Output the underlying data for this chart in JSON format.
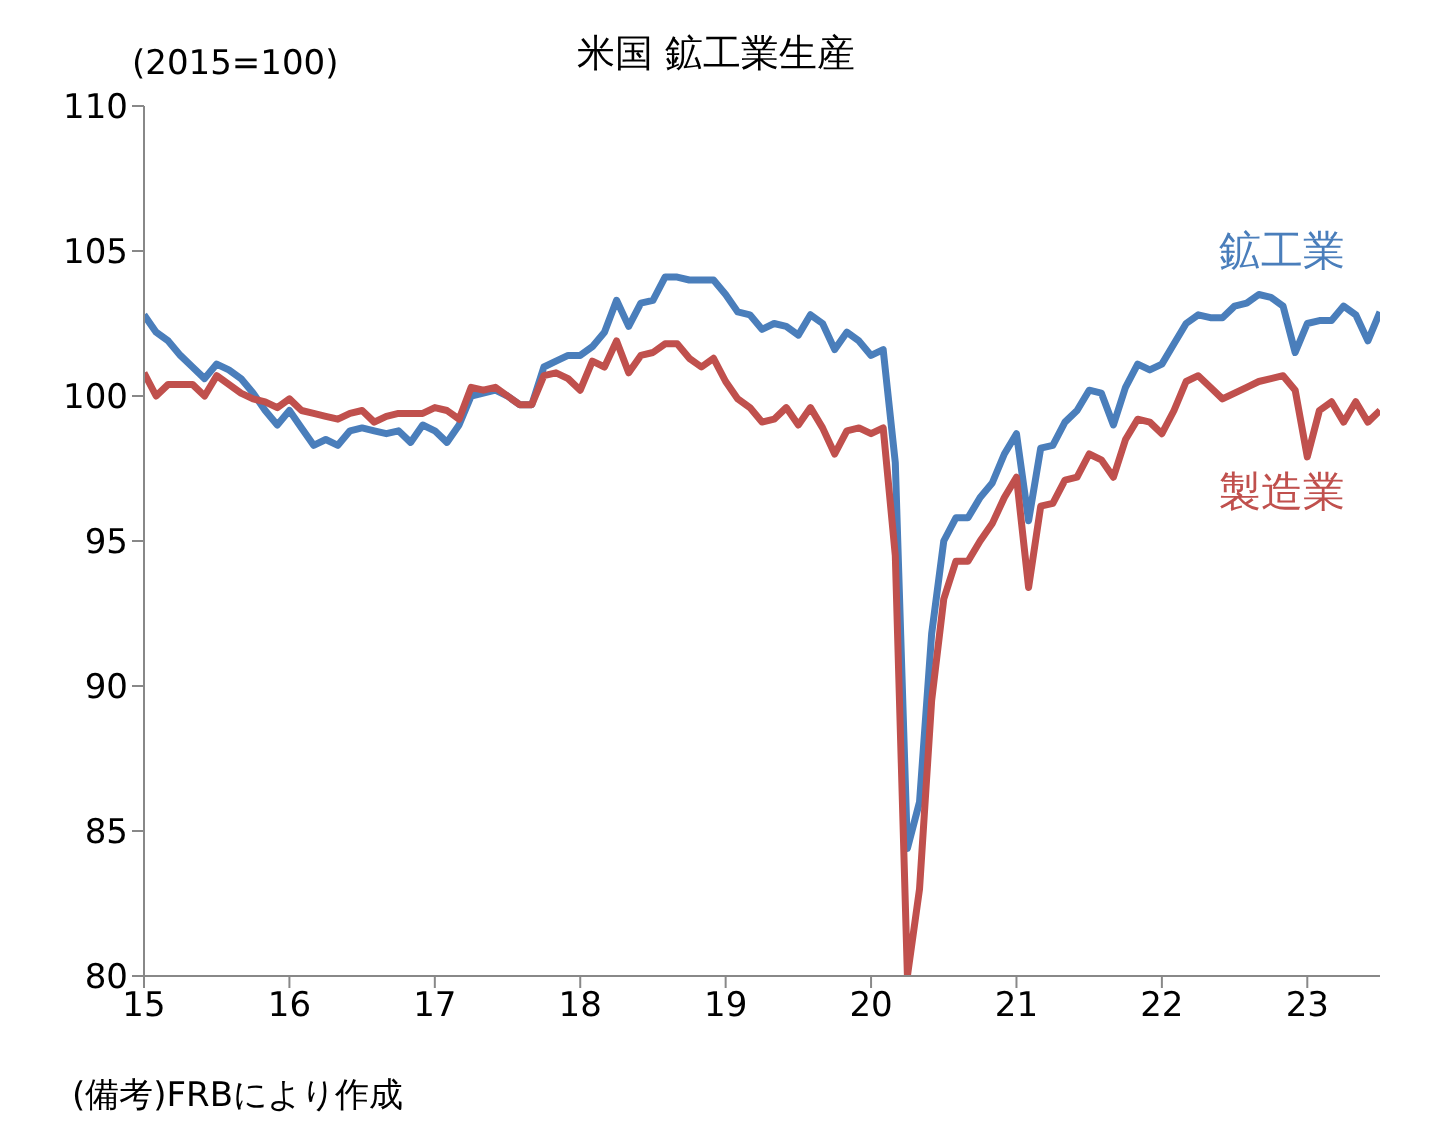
{
  "chart_data": {
    "type": "line",
    "title": "米国 鉱工業生産",
    "ylabel": "(2015=100)",
    "annotations": [
      "(備考)FRBにより作成"
    ],
    "x": [
      "2015-01",
      "2015-02",
      "2015-03",
      "2015-04",
      "2015-05",
      "2015-06",
      "2015-07",
      "2015-08",
      "2015-09",
      "2015-10",
      "2015-11",
      "2015-12",
      "2016-01",
      "2016-02",
      "2016-03",
      "2016-04",
      "2016-05",
      "2016-06",
      "2016-07",
      "2016-08",
      "2016-09",
      "2016-10",
      "2016-11",
      "2016-12",
      "2017-01",
      "2017-02",
      "2017-03",
      "2017-04",
      "2017-05",
      "2017-06",
      "2017-07",
      "2017-08",
      "2017-09",
      "2017-10",
      "2017-11",
      "2017-12",
      "2018-01",
      "2018-02",
      "2018-03",
      "2018-04",
      "2018-05",
      "2018-06",
      "2018-07",
      "2018-08",
      "2018-09",
      "2018-10",
      "2018-11",
      "2018-12",
      "2019-01",
      "2019-02",
      "2019-03",
      "2019-04",
      "2019-05",
      "2019-06",
      "2019-07",
      "2019-08",
      "2019-09",
      "2019-10",
      "2019-11",
      "2019-12",
      "2020-01",
      "2020-02",
      "2020-03",
      "2020-04",
      "2020-05",
      "2020-06",
      "2020-07",
      "2020-08",
      "2020-09",
      "2020-10",
      "2020-11",
      "2020-12",
      "2021-01",
      "2021-02",
      "2021-03",
      "2021-04",
      "2021-05",
      "2021-06",
      "2021-07",
      "2021-08",
      "2021-09",
      "2021-10",
      "2021-11",
      "2021-12",
      "2022-01",
      "2022-02",
      "2022-03",
      "2022-04",
      "2022-05",
      "2022-06",
      "2022-07",
      "2022-08",
      "2022-09",
      "2022-10",
      "2022-11",
      "2022-12",
      "2023-01",
      "2023-02",
      "2023-03",
      "2023-04",
      "2023-05",
      "2023-06",
      "2023-07"
    ],
    "xlim": [
      "2015-01",
      "2023-07"
    ],
    "xticks": [
      {
        "value": "2015-01",
        "label": "15"
      },
      {
        "value": "2016-01",
        "label": "16"
      },
      {
        "value": "2017-01",
        "label": "17"
      },
      {
        "value": "2018-01",
        "label": "18"
      },
      {
        "value": "2019-01",
        "label": "19"
      },
      {
        "value": "2020-01",
        "label": "20"
      },
      {
        "value": "2021-01",
        "label": "21"
      },
      {
        "value": "2022-01",
        "label": "22"
      },
      {
        "value": "2023-01",
        "label": "23"
      }
    ],
    "ylim": [
      80,
      110
    ],
    "yticks": [
      80,
      85,
      90,
      95,
      100,
      105,
      110
    ],
    "grid": false,
    "legend": false,
    "marker": "none",
    "line_style": "solid",
    "series": [
      {
        "name": "鉱工業",
        "color": "#4a7ebb",
        "values": [
          102.8,
          102.2,
          101.9,
          101.4,
          101.0,
          100.6,
          101.1,
          100.9,
          100.6,
          100.1,
          99.5,
          99.0,
          99.5,
          98.9,
          98.3,
          98.5,
          98.3,
          98.8,
          98.9,
          98.8,
          98.7,
          98.8,
          98.4,
          99.0,
          98.8,
          98.4,
          99.0,
          100.0,
          100.1,
          100.2,
          100.0,
          99.7,
          99.7,
          101.0,
          101.2,
          101.4,
          101.4,
          101.7,
          102.2,
          103.3,
          102.4,
          103.2,
          103.3,
          104.1,
          104.1,
          104.0,
          104.0,
          104.0,
          103.5,
          102.9,
          102.8,
          102.3,
          102.5,
          102.4,
          102.1,
          102.8,
          102.5,
          101.6,
          102.2,
          101.9,
          101.4,
          101.6,
          97.7,
          84.4,
          86.0,
          91.8,
          95.0,
          95.8,
          95.8,
          96.5,
          97.0,
          98.0,
          98.7,
          95.7,
          98.2,
          98.3,
          99.1,
          99.5,
          100.2,
          100.1,
          99.0,
          100.3,
          101.1,
          100.9,
          101.1,
          101.8,
          102.5,
          102.8,
          102.7,
          102.7,
          103.1,
          103.2,
          103.5,
          103.4,
          103.1,
          101.5,
          102.5,
          102.6,
          102.6,
          103.1,
          102.8,
          101.9,
          102.9
        ]
      },
      {
        "name": "製造業",
        "color": "#c0504d",
        "values": [
          100.8,
          100.0,
          100.4,
          100.4,
          100.4,
          100.0,
          100.7,
          100.4,
          100.1,
          99.9,
          99.8,
          99.6,
          99.9,
          99.5,
          99.4,
          99.3,
          99.2,
          99.4,
          99.5,
          99.1,
          99.3,
          99.4,
          99.4,
          99.4,
          99.6,
          99.5,
          99.2,
          100.3,
          100.2,
          100.3,
          100.0,
          99.7,
          99.7,
          100.7,
          100.8,
          100.6,
          100.2,
          101.2,
          101.0,
          101.9,
          100.8,
          101.4,
          101.5,
          101.8,
          101.8,
          101.3,
          101.0,
          101.3,
          100.5,
          99.9,
          99.6,
          99.1,
          99.2,
          99.6,
          99.0,
          99.6,
          98.9,
          98.0,
          98.8,
          98.9,
          98.7,
          98.9,
          94.5,
          80.0,
          83.0,
          89.5,
          93.0,
          94.3,
          94.3,
          95.0,
          95.6,
          96.5,
          97.2,
          93.4,
          96.2,
          96.3,
          97.1,
          97.2,
          98.0,
          97.8,
          97.2,
          98.5,
          99.2,
          99.1,
          98.7,
          99.5,
          100.5,
          100.7,
          100.3,
          99.9,
          100.1,
          100.3,
          100.5,
          100.6,
          100.7,
          100.2,
          97.9,
          99.5,
          99.8,
          99.1,
          99.8,
          99.1,
          99.5
        ]
      }
    ]
  }
}
